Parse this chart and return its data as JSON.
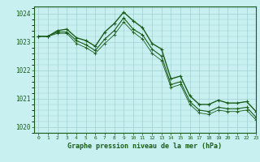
{
  "title": "Graphe pression niveau de la mer (hPa)",
  "background_color": "#c8f0f0",
  "line_color": "#1a5c1a",
  "grid_color": "#a0d0d0",
  "xlim": [
    -0.5,
    23
  ],
  "ylim": [
    1019.8,
    1024.25
  ],
  "yticks": [
    1020,
    1021,
    1022,
    1023,
    1024
  ],
  "xticks": [
    0,
    1,
    2,
    3,
    4,
    5,
    6,
    7,
    8,
    9,
    10,
    11,
    12,
    13,
    14,
    15,
    16,
    17,
    18,
    19,
    20,
    21,
    22,
    23
  ],
  "series": [
    [
      1023.2,
      1023.2,
      1023.4,
      1023.45,
      1023.15,
      1023.05,
      1022.85,
      1023.35,
      1023.65,
      1024.05,
      1023.75,
      1023.5,
      1022.95,
      1022.75,
      1021.7,
      1021.8,
      1021.1,
      1020.8,
      1020.8,
      1020.95,
      1020.85,
      1020.85,
      1020.9,
      1020.55
    ],
    [
      1023.2,
      1023.2,
      1023.35,
      1023.35,
      1023.05,
      1022.9,
      1022.7,
      1023.1,
      1023.4,
      1023.85,
      1023.45,
      1023.25,
      1022.75,
      1022.5,
      1021.5,
      1021.6,
      1020.9,
      1020.6,
      1020.55,
      1020.7,
      1020.65,
      1020.65,
      1020.7,
      1020.35
    ],
    [
      1023.2,
      1023.2,
      1023.3,
      1023.3,
      1022.95,
      1022.8,
      1022.6,
      1022.95,
      1023.25,
      1023.7,
      1023.35,
      1023.1,
      1022.6,
      1022.35,
      1021.4,
      1021.5,
      1020.8,
      1020.5,
      1020.45,
      1020.6,
      1020.55,
      1020.55,
      1020.6,
      1020.25
    ]
  ]
}
